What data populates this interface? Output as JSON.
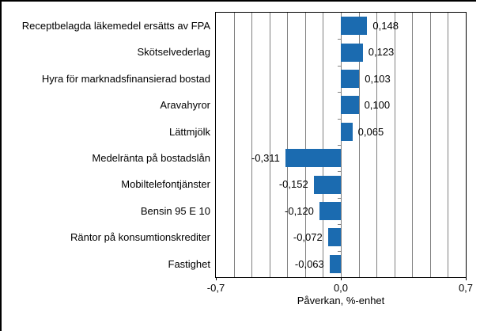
{
  "chart_data": {
    "type": "bar",
    "orientation": "horizontal",
    "title": "",
    "xlabel": "Påverkan, %-enhet",
    "ylabel": "",
    "xlim": [
      -0.7,
      0.7
    ],
    "gridline_step": 0.1,
    "grid": true,
    "legend": false,
    "categories": [
      "Receptbelagda läkemedel ersätts av FPA",
      "Skötselvederlag",
      "Hyra för marknadsfinansierad bostad",
      "Aravahyror",
      "Lättmjölk",
      "Medelränta på bostadslån",
      "Mobiltelefontjänster",
      "Bensin 95 E 10",
      "Räntor på konsumtionskrediter",
      "Fastighet"
    ],
    "values": [
      0.148,
      0.123,
      0.103,
      0.1,
      0.065,
      -0.311,
      -0.152,
      -0.12,
      -0.072,
      -0.063
    ],
    "value_labels": [
      "0,148",
      "0,123",
      "0,103",
      "0,100",
      "0,065",
      "-0,311",
      "-0,152",
      "-0,120",
      "-0,072",
      "-0,063"
    ],
    "x_ticks": [
      {
        "value": -0.7,
        "label": "-0,7"
      },
      {
        "value": 0.0,
        "label": "0,0"
      },
      {
        "value": 0.7,
        "label": "0,7"
      }
    ],
    "colors": {
      "bar": "#1b6bb0",
      "gridline": "#808080",
      "axis": "#000000",
      "text": "#000000",
      "background": "#ffffff"
    }
  }
}
